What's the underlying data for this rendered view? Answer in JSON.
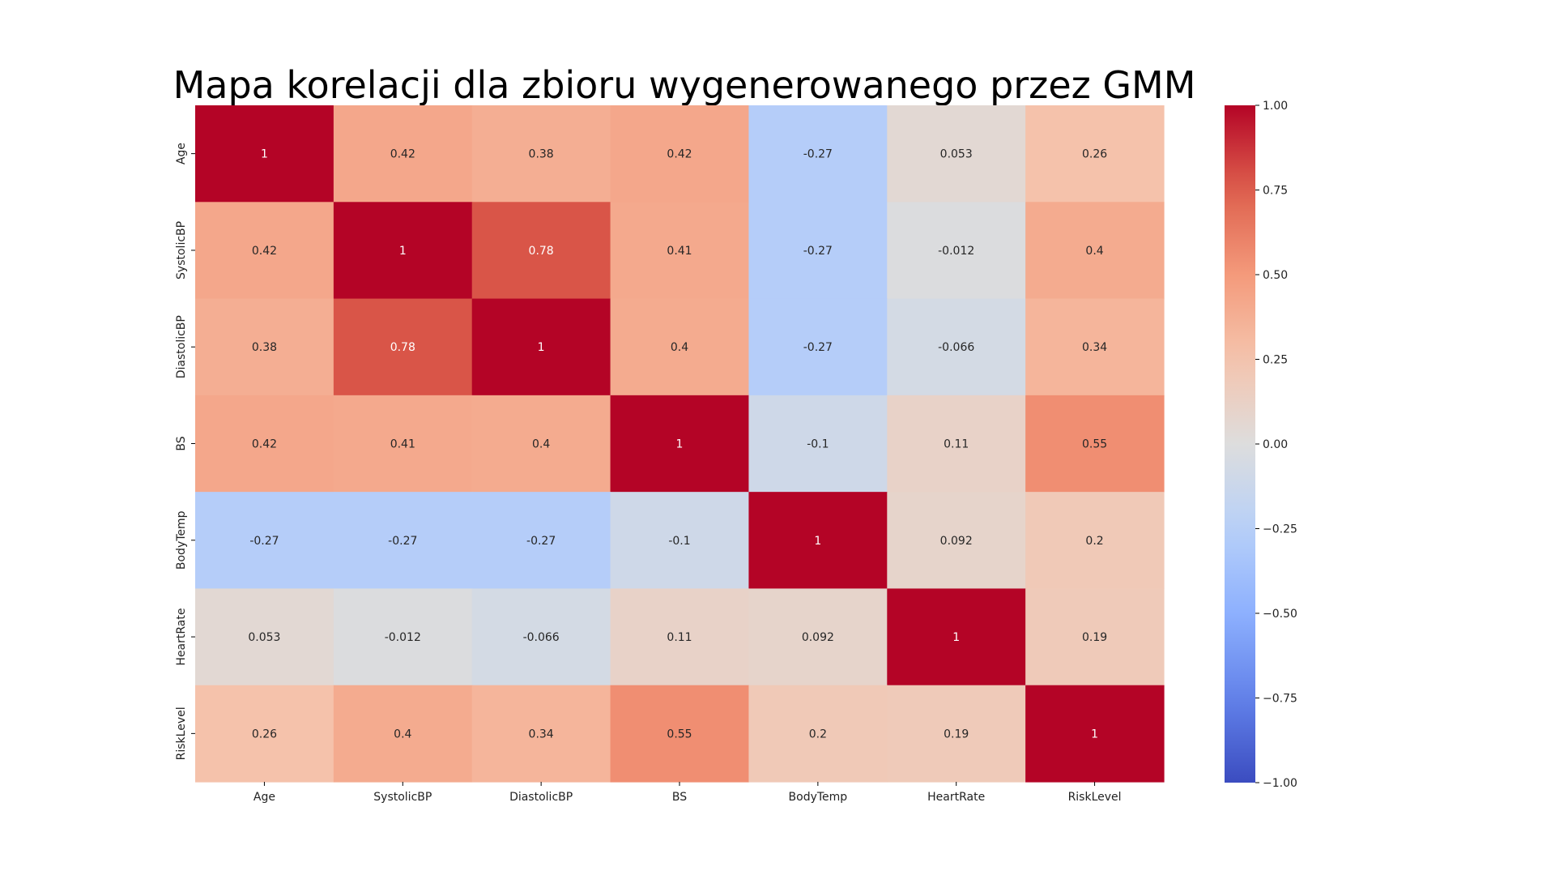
{
  "chart_data": {
    "type": "heatmap",
    "title": "Mapa korelacji dla zbioru wygenerowanego przez GMM",
    "xlabel": "",
    "ylabel": "",
    "x_categories": [
      "Age",
      "SystolicBP",
      "DiastolicBP",
      "BS",
      "BodyTemp",
      "HeartRate",
      "RiskLevel"
    ],
    "y_categories": [
      "Age",
      "SystolicBP",
      "DiastolicBP",
      "BS",
      "BodyTemp",
      "HeartRate",
      "RiskLevel"
    ],
    "values": [
      [
        1,
        0.42,
        0.38,
        0.42,
        -0.27,
        0.053,
        0.26
      ],
      [
        0.42,
        1,
        0.78,
        0.41,
        -0.27,
        -0.012,
        0.4
      ],
      [
        0.38,
        0.78,
        1,
        0.4,
        -0.27,
        -0.066,
        0.34
      ],
      [
        0.42,
        0.41,
        0.4,
        1,
        -0.1,
        0.11,
        0.55
      ],
      [
        -0.27,
        -0.27,
        -0.27,
        -0.1,
        1,
        0.092,
        0.2
      ],
      [
        0.053,
        -0.012,
        -0.066,
        0.11,
        0.092,
        1,
        0.19
      ],
      [
        0.26,
        0.4,
        0.34,
        0.55,
        0.2,
        0.19,
        1
      ]
    ],
    "value_labels": [
      [
        "1",
        "0.42",
        "0.38",
        "0.42",
        "-0.27",
        "0.053",
        "0.26"
      ],
      [
        "0.42",
        "1",
        "0.78",
        "0.41",
        "-0.27",
        "-0.012",
        "0.4"
      ],
      [
        "0.38",
        "0.78",
        "1",
        "0.4",
        "-0.27",
        "-0.066",
        "0.34"
      ],
      [
        "0.42",
        "0.41",
        "0.4",
        "1",
        "-0.1",
        "0.11",
        "0.55"
      ],
      [
        "-0.27",
        "-0.27",
        "-0.27",
        "-0.1",
        "1",
        "0.092",
        "0.2"
      ],
      [
        "0.053",
        "-0.012",
        "-0.066",
        "0.11",
        "0.092",
        "1",
        "0.19"
      ],
      [
        "0.26",
        "0.4",
        "0.34",
        "0.55",
        "0.2",
        "0.19",
        "1"
      ]
    ],
    "colormap": "coolwarm",
    "vmin": -1,
    "vmax": 1,
    "colorbar": {
      "ticks": [
        1.0,
        0.75,
        0.5,
        0.25,
        0.0,
        -0.25,
        -0.5,
        -0.75,
        -1.0
      ],
      "tick_labels": [
        "1.00",
        "0.75",
        "0.50",
        "0.25",
        "0.00",
        "−0.25",
        "−0.50",
        "−0.75",
        "−1.00"
      ]
    },
    "grid": false,
    "colorbar_position": "right"
  }
}
